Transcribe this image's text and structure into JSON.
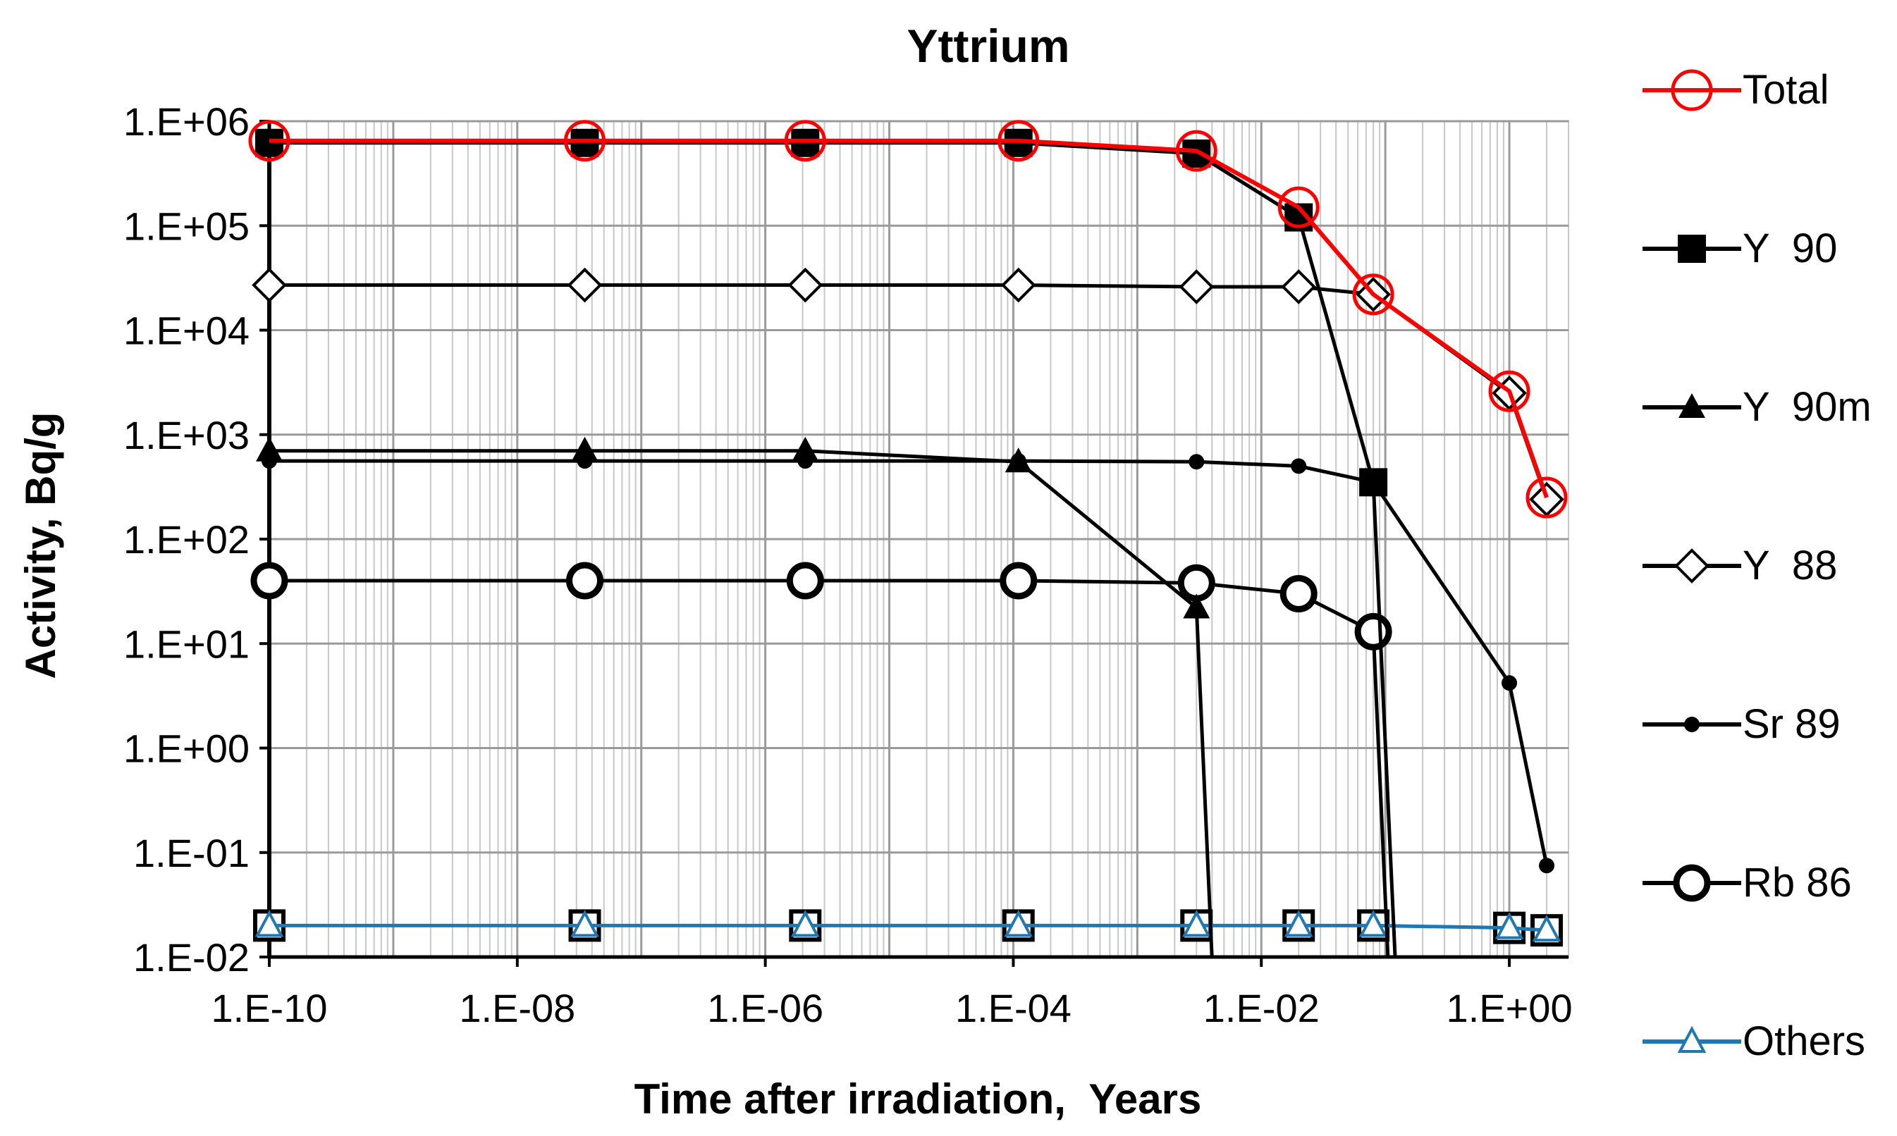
{
  "chart_data": {
    "type": "line",
    "title": "Yttrium",
    "xlabel": "Time after irradiation,  Years",
    "ylabel": "Activity, Bq/g",
    "xscale": "log",
    "yscale": "log",
    "xlim": [
      1e-10,
      3
    ],
    "ylim": [
      0.01,
      1000000
    ],
    "x_tick_labels": [
      "1.E-10",
      "1.E-08",
      "1.E-06",
      "1.E-04",
      "1.E-02",
      "1.E+00"
    ],
    "y_tick_labels": [
      "1.E-02",
      "1.E-01",
      "1.E+00",
      "1.E+01",
      "1.E+02",
      "1.E+03",
      "1.E+04",
      "1.E+05",
      "1.E+06"
    ],
    "grid": true,
    "legend_position": "right",
    "x": [
      1e-10,
      3.5e-08,
      2.1e-06,
      0.00011,
      0.003,
      0.02,
      0.08,
      1.0,
      2.0
    ],
    "series": [
      {
        "name": "Total",
        "color": "#ff0000",
        "marker": "circle-open",
        "values": [
          650000,
          650000,
          650000,
          650000,
          520000,
          150000,
          22000,
          2600,
          250
        ]
      },
      {
        "name": "Y  90",
        "color": "#000000",
        "marker": "square-filled",
        "values": [
          620000,
          620000,
          620000,
          620000,
          490000,
          120000,
          350,
          null,
          null
        ]
      },
      {
        "name": "Y  90m",
        "color": "#000000",
        "marker": "triangle-filled",
        "values": [
          700,
          700,
          700,
          550,
          22,
          null,
          null,
          null,
          null
        ]
      },
      {
        "name": "Y  88",
        "color": "#000000",
        "marker": "diamond-open",
        "values": [
          27000,
          27000,
          27000,
          27000,
          26000,
          26000,
          22000,
          2500,
          240
        ]
      },
      {
        "name": "Sr 89",
        "color": "#000000",
        "marker": "dot-filled",
        "values": [
          560,
          560,
          560,
          560,
          550,
          500,
          350,
          4.2,
          0.075
        ]
      },
      {
        "name": "Rb 86",
        "color": "#000000",
        "marker": "circle-open-thick",
        "values": [
          40,
          40,
          40,
          40,
          38,
          30,
          13,
          null,
          null
        ]
      },
      {
        "name": "Others",
        "color": "#1f77b4",
        "marker": "triangle-open",
        "values": [
          0.02,
          0.02,
          0.02,
          0.02,
          0.02,
          0.02,
          0.02,
          0.019,
          0.018
        ]
      }
    ],
    "drop_lines": [
      {
        "series": "Y  90m",
        "x_from": 0.003,
        "y_from": 22,
        "x_to": 0.004
      },
      {
        "series": "Y  90",
        "x_from": 0.08,
        "y_from": 350,
        "x_to": 0.12
      },
      {
        "series": "Rb 86",
        "x_from": 0.08,
        "y_from": 13,
        "x_to": 0.105
      }
    ]
  }
}
